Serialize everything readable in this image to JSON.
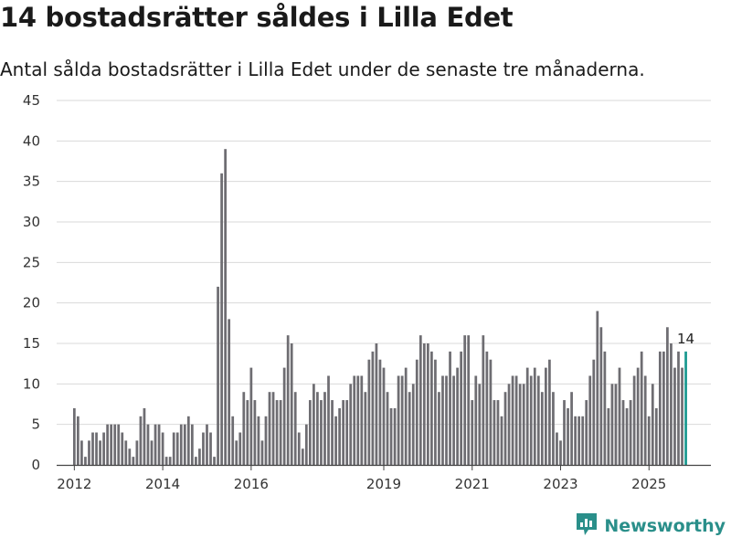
{
  "header": {
    "title": "14 bostadsrätter såldes i Lilla Edet",
    "subtitle": "Antal sålda bostadsrätter i Lilla Edet under de senaste tre månaderna."
  },
  "brand": {
    "name": "Newsworthy",
    "icon": "newsworthy-logo-icon",
    "color": "#2a8f8a"
  },
  "colors": {
    "bar": "#6e6d72",
    "highlight": "#1a9990",
    "grid": "#d9d9d9",
    "axis": "#444444"
  },
  "chart_data": {
    "type": "bar",
    "title": "14 bostadsrätter såldes i Lilla Edet",
    "xlabel": "",
    "ylabel": "",
    "ylim": [
      0,
      45
    ],
    "yticks": [
      0,
      5,
      10,
      15,
      20,
      25,
      30,
      35,
      40,
      45
    ],
    "grid": true,
    "x_range": [
      2011.6,
      2026.4
    ],
    "x_start": 2012.0,
    "x_step": 0.08333,
    "xticks": [
      {
        "value": 2012,
        "label": "2012"
      },
      {
        "value": 2014,
        "label": "2014"
      },
      {
        "value": 2016,
        "label": "2016"
      },
      {
        "value": 2019,
        "label": "2019"
      },
      {
        "value": 2021,
        "label": "2021"
      },
      {
        "value": 2023,
        "label": "2023"
      },
      {
        "value": 2025,
        "label": "2025"
      }
    ],
    "values": [
      7,
      6,
      3,
      1,
      3,
      4,
      4,
      3,
      4,
      5,
      5,
      5,
      5,
      4,
      3,
      2,
      1,
      3,
      6,
      7,
      5,
      3,
      5,
      5,
      4,
      1,
      1,
      4,
      4,
      5,
      5,
      6,
      5,
      1,
      2,
      4,
      5,
      4,
      1,
      22,
      36,
      39,
      18,
      6,
      3,
      4,
      9,
      8,
      12,
      8,
      6,
      3,
      6,
      9,
      9,
      8,
      8,
      12,
      16,
      15,
      9,
      4,
      2,
      5,
      8,
      10,
      9,
      8,
      9,
      11,
      8,
      6,
      7,
      8,
      8,
      10,
      11,
      11,
      11,
      9,
      13,
      14,
      15,
      13,
      12,
      9,
      7,
      7,
      11,
      11,
      12,
      9,
      10,
      13,
      16,
      15,
      15,
      14,
      13,
      9,
      11,
      11,
      14,
      11,
      12,
      14,
      16,
      16,
      8,
      11,
      10,
      16,
      14,
      13,
      8,
      8,
      6,
      9,
      10,
      11,
      11,
      10,
      10,
      12,
      11,
      12,
      11,
      9,
      12,
      13,
      9,
      4,
      3,
      8,
      7,
      9,
      6,
      6,
      6,
      8,
      11,
      13,
      19,
      17,
      14,
      7,
      10,
      10,
      12,
      8,
      7,
      8,
      11,
      12,
      14,
      11,
      6,
      10,
      7,
      14,
      14,
      17,
      15,
      12,
      14,
      12,
      14
    ],
    "highlight_index_from_end": 1,
    "last_value": 14,
    "last_label": "14"
  }
}
